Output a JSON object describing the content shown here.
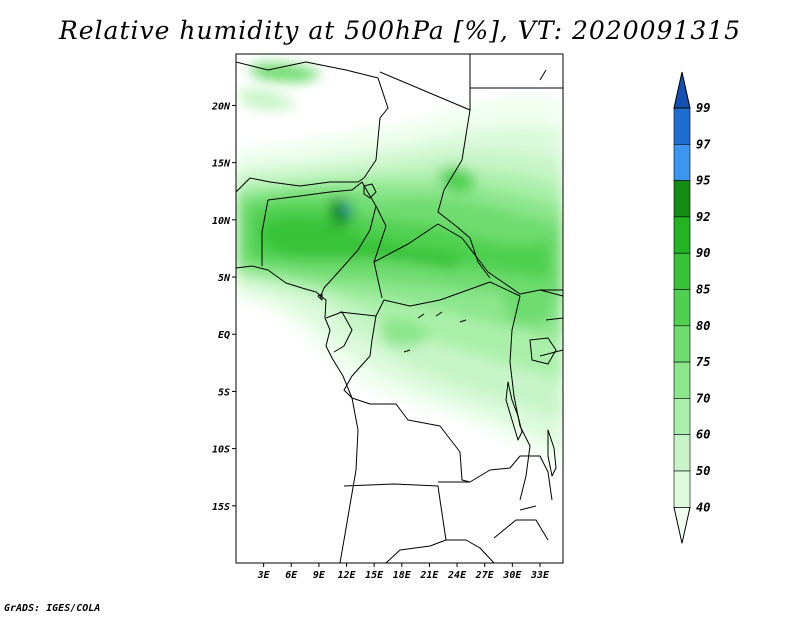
{
  "title": "Relative humidity at 500hPa [%], VT: 2020091315",
  "credit": "GrADS: IGES/COLA",
  "map": {
    "lon_range": [
      0,
      35.5
    ],
    "lat_range": [
      -20,
      24.5
    ],
    "lat_ticks": [
      {
        "value": 20,
        "label": "20N"
      },
      {
        "value": 15,
        "label": "15N"
      },
      {
        "value": 10,
        "label": "10N"
      },
      {
        "value": 5,
        "label": "5N"
      },
      {
        "value": 0,
        "label": "EQ"
      },
      {
        "value": -5,
        "label": "5S"
      },
      {
        "value": -10,
        "label": "10S"
      },
      {
        "value": -15,
        "label": "15S"
      }
    ],
    "lon_ticks": [
      {
        "value": 3,
        "label": "3E"
      },
      {
        "value": 6,
        "label": "6E"
      },
      {
        "value": 9,
        "label": "9E"
      },
      {
        "value": 12,
        "label": "12E"
      },
      {
        "value": 15,
        "label": "15E"
      },
      {
        "value": 18,
        "label": "18E"
      },
      {
        "value": 21,
        "label": "21E"
      },
      {
        "value": 24,
        "label": "24E"
      },
      {
        "value": 27,
        "label": "27E"
      },
      {
        "value": 30,
        "label": "30E"
      },
      {
        "value": 33,
        "label": "33E"
      }
    ]
  },
  "colorbar": {
    "labels": [
      "99",
      "97",
      "95",
      "92",
      "90",
      "85",
      "80",
      "75",
      "70",
      "60",
      "50",
      "40"
    ],
    "colors": [
      "#f0fff0",
      "#dcfadc",
      "#c8f5c8",
      "#aaf0aa",
      "#8ce68c",
      "#6edc6e",
      "#50d050",
      "#37c337",
      "#23b423",
      "#148c14",
      "#3c96f0",
      "#1e6ed2",
      "#1450b4"
    ]
  },
  "humidity_colors": {
    "c40": "#f0fff0",
    "c50": "#dcfadc",
    "c60": "#c8f5c8",
    "c70": "#aaf0aa",
    "c75": "#8ce68c",
    "c80": "#6edc6e",
    "c85": "#50d050",
    "c90": "#37c337",
    "c95": "#148c14",
    "c97": "#3c96f0"
  }
}
